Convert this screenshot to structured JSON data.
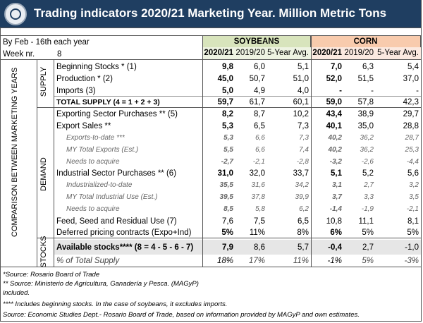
{
  "title": "Trading indicators 2020/21 Marketing Year. Million Metric Tons",
  "meta": {
    "by_label": "By Feb - 16th each year",
    "week_label": "Week nr.",
    "week_value": "8"
  },
  "groups": {
    "soybeans": "SOYBEANS",
    "corn": "CORN"
  },
  "columns": [
    "2020/21",
    "2019/20",
    "5-Year Avg.",
    "2020/21",
    "2019/20",
    "5-Year Avg."
  ],
  "side_labels": {
    "comparison": "COMPARISON BETWEEN MARKETING YEARS",
    "supply": "SUPPLY",
    "demand": "DEMAND",
    "stocks": "STOCKS"
  },
  "rows": [
    {
      "label": "Beginning Stocks  * (1)",
      "values": [
        "9,8",
        "6,0",
        "5,1",
        "7,0",
        "6,3",
        "5,4"
      ]
    },
    {
      "label": "Production * (2)",
      "values": [
        "45,0",
        "50,7",
        "51,0",
        "52,0",
        "51,5",
        "37,0"
      ]
    },
    {
      "label": "Imports (3)",
      "values": [
        "5,0",
        "4,9",
        "4,0",
        "-",
        "-",
        "-"
      ]
    },
    {
      "label": "TOTAL SUPPLY (4 = 1 + 2 + 3)",
      "values": [
        "59,7",
        "61,7",
        "60,1",
        "59,0",
        "57,8",
        "42,3"
      ]
    },
    {
      "label": "Exporting Sector Purchases ** (5)",
      "values": [
        "8,2",
        "8,7",
        "10,2",
        "43,4",
        "38,9",
        "29,7"
      ]
    },
    {
      "label": "Export Sales **",
      "values": [
        "5,3",
        "6,5",
        "7,3",
        "40,1",
        "35,0",
        "28,8"
      ]
    },
    {
      "label": "Exports-to-date ***",
      "values": [
        "5,3",
        "6,6",
        "7,3",
        "40,2",
        "36,2",
        "28,7"
      ]
    },
    {
      "label": "MY Total Exports (Est.)",
      "values": [
        "5,5",
        "6,6",
        "7,4",
        "40,2",
        "36,2",
        "25,3"
      ]
    },
    {
      "label": "Needs to acquire",
      "values": [
        "-2,7",
        "-2,1",
        "-2,8",
        "-3,2",
        "-2,6",
        "-4,4"
      ]
    },
    {
      "label": "Industrial Sector Purchases ** (6)",
      "values": [
        "31,0",
        "32,0",
        "33,7",
        "5,1",
        "5,2",
        "5,6"
      ]
    },
    {
      "label": "Industrialized-to-date",
      "values": [
        "35,5",
        "31,6",
        "34,2",
        "3,1",
        "2,7",
        "3,2"
      ]
    },
    {
      "label": "MY Total Industrial Use (Est.)",
      "values": [
        "39,5",
        "37,8",
        "39,9",
        "3,7",
        "3,3",
        "3,5"
      ]
    },
    {
      "label": "Needs to acquire",
      "values": [
        "8,5",
        "5,8",
        "6,2",
        "-1,4",
        "-1,9",
        "-2,1"
      ]
    },
    {
      "label": "Feed, Seed and Residual Use (7)",
      "values": [
        "7,6",
        "7,5",
        "6,5",
        "10,8",
        "11,1",
        "8,1"
      ]
    },
    {
      "label": "Deferred pricing contracts (Expo+Ind)",
      "values": [
        "5%",
        "11%",
        "8%",
        "6%",
        "5%",
        "5%"
      ]
    },
    {
      "label": "Available stocks**** (8 = 4 - 5 - 6 - 7)",
      "values": [
        "7,9",
        "8,6",
        "5,7",
        "-0,4",
        "2,7",
        "-1,0"
      ]
    },
    {
      "label": "% of Total Supply",
      "values": [
        "18%",
        "17%",
        "11%",
        "-1%",
        "5%",
        "-3%"
      ]
    }
  ],
  "footnotes": [
    "*Source: Rosario Board of Trade",
    "** Source: Ministerio de Agricultura, Ganadería y Pesca. (MAGyP)",
    "included.",
    "**** Includes beginning stocks. In the case of soybeans, it excludes imports.",
    "Source: Economic Studies Dept.- Rosario Board of Trade, based on information provided by MAGyP and own estimates."
  ]
}
